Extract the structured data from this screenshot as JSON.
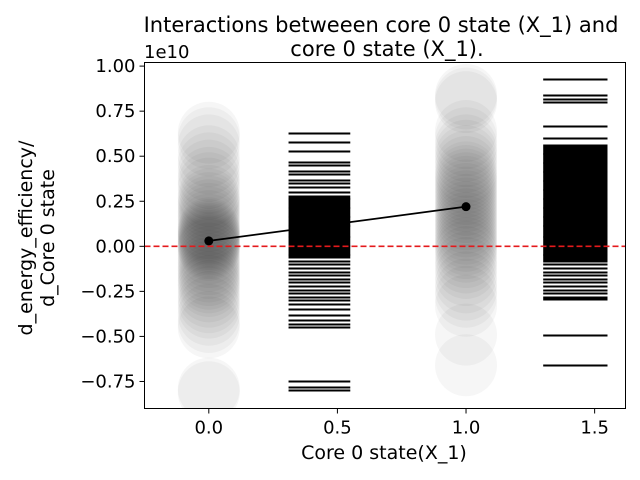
{
  "chart_data": {
    "type": "scatter",
    "title_lines": [
      "Interactions betweeen core 0 state (X_1)  and",
      "core 0 state (X_1)."
    ],
    "xlabel": "Core 0 state(X_1)",
    "ylabel_lines": [
      "d_energy_efficiency/",
      "d_Core 0 state"
    ],
    "y_offset_text": "1e10",
    "xlim": [
      -0.25,
      1.62
    ],
    "ylim": [
      -0.9,
      1.02
    ],
    "x_ticks": [
      0.0,
      0.5,
      1.0,
      1.5
    ],
    "x_tick_labels": [
      "0.0",
      "0.5",
      "1.0",
      "1.5"
    ],
    "y_ticks": [
      -0.75,
      -0.5,
      -0.25,
      0.0,
      0.25,
      0.5,
      0.75,
      1.0
    ],
    "y_tick_labels": [
      "−0.75",
      "−0.50",
      "−0.25",
      "0.00",
      "0.25",
      "0.50",
      "0.75",
      "1.00"
    ],
    "zero_line": {
      "y": 0.0,
      "color": "#e41a1c",
      "style": "dashed"
    },
    "mean_line": {
      "x": [
        0.0,
        1.0
      ],
      "y": [
        0.03,
        0.22
      ],
      "color": "#000000"
    },
    "scatter_columns": [
      {
        "x": 0.0,
        "color": "#000000",
        "values": [
          0.63,
          0.6,
          0.56,
          0.5,
          0.46,
          0.42,
          0.38,
          0.35,
          0.32,
          0.28,
          0.26,
          0.24,
          0.22,
          0.2,
          0.18,
          0.16,
          0.14,
          0.12,
          0.1,
          0.09,
          0.08,
          0.07,
          0.06,
          0.05,
          0.04,
          0.03,
          0.02,
          0.01,
          0.0,
          -0.01,
          -0.02,
          -0.04,
          -0.06,
          -0.08,
          -0.1,
          -0.12,
          -0.14,
          -0.16,
          -0.18,
          -0.2,
          -0.22,
          -0.25,
          -0.28,
          -0.31,
          -0.34,
          -0.38,
          -0.42,
          -0.45,
          -0.79,
          -0.81
        ]
      },
      {
        "x": 1.0,
        "color": "#000000",
        "values": [
          0.84,
          0.82,
          0.8,
          0.64,
          0.6,
          0.56,
          0.53,
          0.5,
          0.47,
          0.44,
          0.41,
          0.39,
          0.37,
          0.35,
          0.33,
          0.31,
          0.29,
          0.27,
          0.25,
          0.23,
          0.21,
          0.19,
          0.17,
          0.15,
          0.13,
          0.11,
          0.09,
          0.07,
          0.05,
          0.03,
          0.01,
          -0.01,
          -0.03,
          -0.06,
          -0.09,
          -0.12,
          -0.16,
          -0.2,
          -0.24,
          -0.28,
          -0.33,
          -0.49,
          -0.66
        ]
      }
    ],
    "hist_columns": [
      {
        "x_range": [
          0.31,
          0.55
        ],
        "values": [
          0.63,
          0.58,
          0.53,
          0.47,
          0.45,
          0.42,
          0.4,
          0.37,
          0.35,
          0.33,
          0.3,
          0.28,
          0.27,
          0.26,
          0.25,
          0.24,
          0.23,
          0.22,
          0.21,
          0.2,
          0.19,
          0.18,
          0.17,
          0.16,
          0.15,
          0.14,
          0.13,
          0.12,
          0.11,
          0.1,
          0.09,
          0.08,
          0.07,
          0.06,
          0.05,
          0.04,
          0.03,
          0.02,
          0.01,
          0.0,
          -0.01,
          -0.02,
          -0.03,
          -0.04,
          -0.05,
          -0.06,
          -0.08,
          -0.1,
          -0.12,
          -0.14,
          -0.16,
          -0.18,
          -0.2,
          -0.22,
          -0.24,
          -0.26,
          -0.28,
          -0.3,
          -0.32,
          -0.35,
          -0.38,
          -0.41,
          -0.43,
          -0.45,
          -0.75,
          -0.78,
          -0.8
        ]
      },
      {
        "x_range": [
          1.3,
          1.55
        ],
        "values": [
          0.93,
          0.84,
          0.82,
          0.8,
          0.67,
          0.6,
          0.56,
          0.55,
          0.54,
          0.53,
          0.52,
          0.51,
          0.5,
          0.49,
          0.48,
          0.47,
          0.46,
          0.45,
          0.44,
          0.43,
          0.42,
          0.41,
          0.4,
          0.39,
          0.38,
          0.37,
          0.36,
          0.35,
          0.34,
          0.33,
          0.32,
          0.31,
          0.3,
          0.29,
          0.28,
          0.27,
          0.26,
          0.25,
          0.24,
          0.23,
          0.22,
          0.21,
          0.2,
          0.19,
          0.18,
          0.17,
          0.16,
          0.15,
          0.14,
          0.13,
          0.12,
          0.11,
          0.1,
          0.09,
          0.08,
          0.07,
          0.06,
          0.05,
          0.04,
          0.03,
          0.02,
          0.01,
          0.0,
          -0.01,
          -0.02,
          -0.03,
          -0.04,
          -0.05,
          -0.06,
          -0.07,
          -0.08,
          -0.1,
          -0.12,
          -0.14,
          -0.16,
          -0.18,
          -0.2,
          -0.22,
          -0.24,
          -0.26,
          -0.28,
          -0.29,
          -0.49,
          -0.66
        ]
      }
    ]
  }
}
